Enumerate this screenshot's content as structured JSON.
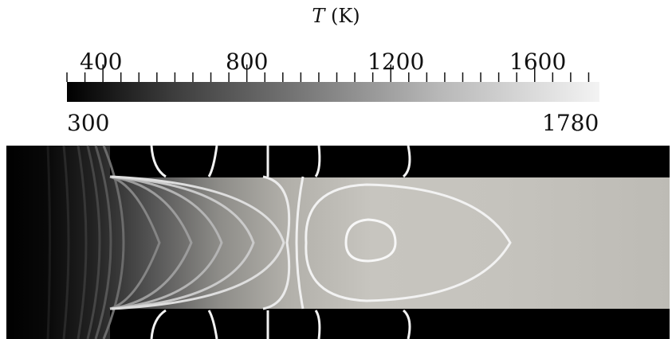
{
  "title": {
    "symbol": "T",
    "unit": "(K)"
  },
  "colorbar": {
    "min_label": "300",
    "max_label": "1780",
    "major_ticks": [
      "400",
      "800",
      "1200",
      "1600"
    ],
    "min": 300,
    "max": 1780,
    "colormap": "grayscale"
  },
  "colors": {
    "wall": "#000000",
    "contour": "#f2f2f2",
    "fluid_hot": "#c8c6c0"
  }
}
